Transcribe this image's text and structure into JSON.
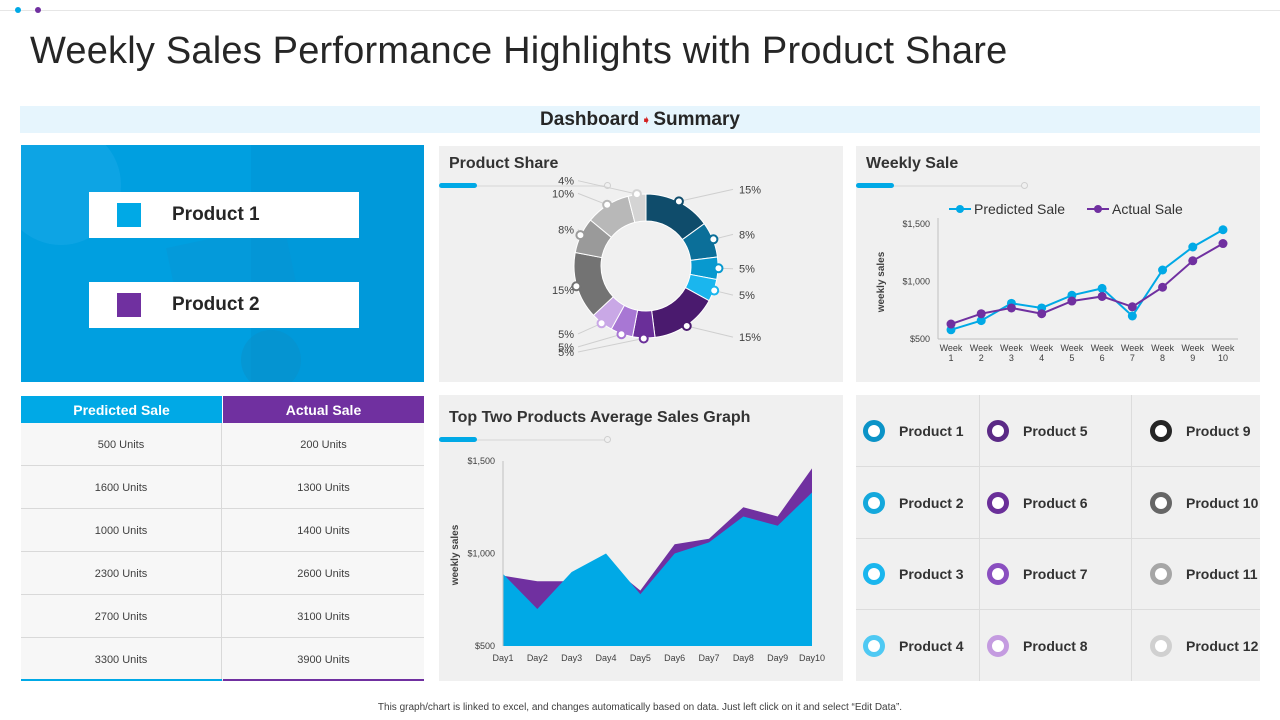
{
  "page": {
    "title": "Weekly Sales Performance Highlights with Product Share",
    "summary_left": "Dashboard",
    "summary_arrow": "➧",
    "summary_right": "Summary",
    "footer": "This graph/chart is linked to excel, and changes automatically based on data. Just left click on it and select “Edit Data”."
  },
  "colors": {
    "blue": "#00a9e6",
    "purple": "#7030a0",
    "dark_teal": "#0f4c6b"
  },
  "hero": {
    "items": [
      {
        "label": "Product 1",
        "color": "#00a9e6"
      },
      {
        "label": "Product 2",
        "color": "#7030a0"
      }
    ]
  },
  "sales_table": {
    "headers": [
      "Predicted Sale",
      "Actual Sale"
    ],
    "rows": [
      [
        "500 Units",
        "200 Units"
      ],
      [
        "1600 Units",
        "1300 Units"
      ],
      [
        "1000 Units",
        "1400 Units"
      ],
      [
        "2300 Units",
        "2600 Units"
      ],
      [
        "2700 Units",
        "3100 Units"
      ],
      [
        "3300 Units",
        "3900 Units"
      ]
    ]
  },
  "product_grid": [
    {
      "label": "Product 1",
      "color": "#0b93c7"
    },
    {
      "label": "Product 5",
      "color": "#5b2a86"
    },
    {
      "label": "Product 9",
      "color": "#262626"
    },
    {
      "label": "Product 2",
      "color": "#14a8dc"
    },
    {
      "label": "Product 6",
      "color": "#6a2f99"
    },
    {
      "label": "Product 10",
      "color": "#666666"
    },
    {
      "label": "Product 3",
      "color": "#1ab6ee"
    },
    {
      "label": "Product 7",
      "color": "#8a4fc0"
    },
    {
      "label": "Product 11",
      "color": "#a6a6a6"
    },
    {
      "label": "Product 4",
      "color": "#4fc9f3"
    },
    {
      "label": "Product 8",
      "color": "#c49be0"
    },
    {
      "label": "Product 12",
      "color": "#d0d0d0"
    }
  ],
  "chart_data": [
    {
      "id": "product-share",
      "type": "pie",
      "title": "Product Share",
      "slices": [
        {
          "label": "15%",
          "value": 15,
          "color": "#0f4c6b"
        },
        {
          "label": "8%",
          "value": 8,
          "color": "#0b6f99"
        },
        {
          "label": "5%",
          "value": 5,
          "color": "#0899cf"
        },
        {
          "label": "5%",
          "value": 5,
          "color": "#1ab6ee"
        },
        {
          "label": "15%",
          "value": 15,
          "color": "#4a1a6e"
        },
        {
          "label": "5%",
          "value": 5,
          "color": "#6a2f99"
        },
        {
          "label": "5%",
          "value": 5,
          "color": "#a877d4"
        },
        {
          "label": "5%",
          "value": 5,
          "color": "#c9a8e6"
        },
        {
          "label": "15%",
          "value": 15,
          "color": "#737373"
        },
        {
          "label": "8%",
          "value": 8,
          "color": "#9a9a9a"
        },
        {
          "label": "10%",
          "value": 10,
          "color": "#b8b8b8"
        },
        {
          "label": "4%",
          "value": 4,
          "color": "#d4d4d4"
        }
      ]
    },
    {
      "id": "weekly-sale",
      "type": "line",
      "title": "Weekly Sale",
      "ylabel": "weekly sales",
      "categories": [
        "Week 1",
        "Week 2",
        "Week 3",
        "Week 4",
        "Week 5",
        "Week 6",
        "Week 7",
        "Week 8",
        "Week 9",
        "Week 10"
      ],
      "yticks": [
        "$500",
        "$1,000",
        "$1,500"
      ],
      "ylim": [
        500,
        1500
      ],
      "series": [
        {
          "name": "Predicted Sale",
          "color": "#00a9e6",
          "values": [
            580,
            660,
            810,
            770,
            880,
            940,
            700,
            1100,
            1300,
            1450
          ]
        },
        {
          "name": "Actual Sale",
          "color": "#7030a0",
          "values": [
            630,
            720,
            770,
            720,
            830,
            870,
            780,
            950,
            1180,
            1330
          ]
        }
      ]
    },
    {
      "id": "avg-sales",
      "type": "area",
      "title": "Top Two Products Average Sales Graph",
      "ylabel": "weekly sales",
      "categories": [
        "Day1",
        "Day2",
        "Day3",
        "Day4",
        "Day5",
        "Day6",
        "Day7",
        "Day8",
        "Day9",
        "Day10"
      ],
      "yticks": [
        "$500",
        "$1,000",
        "$1,500"
      ],
      "ylim": [
        500,
        1500
      ],
      "series": [
        {
          "name": "Actual Sale",
          "color": "#7030a0",
          "values": [
            880,
            850,
            850,
            950,
            800,
            1050,
            1080,
            1250,
            1200,
            1460
          ]
        },
        {
          "name": "Predicted Sale",
          "color": "#00a9e6",
          "values": [
            890,
            700,
            900,
            1000,
            780,
            1000,
            1060,
            1200,
            1150,
            1330
          ]
        }
      ]
    }
  ]
}
